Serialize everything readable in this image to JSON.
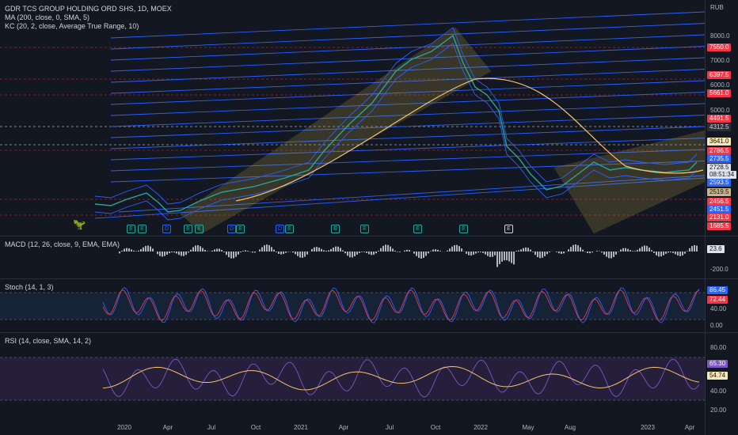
{
  "legends": {
    "symbol": "GDR TCS GROUP HOLDING ORD SHS, 1D, MOEX",
    "ma": "MA (200, close, 0, SMA, 5)",
    "kc": "KC (20, 2, close, Average True Range, 10)",
    "macd": "MACD (12, 26, close, 9, EMA, EMA)",
    "stoch": "Stoch (14, 1, 3)",
    "rsi": "RSI (14, close, SMA, 14, 2)"
  },
  "currency": "RUB",
  "price_ticks": [
    "8000.0",
    "7000.0",
    "6000.0",
    "5000.0"
  ],
  "price_tags": [
    {
      "text": "7550.0",
      "bg": "#f23645",
      "fg": "#ffffff"
    },
    {
      "text": "6397.5",
      "bg": "#f23645",
      "fg": "#ffffff"
    },
    {
      "text": "5661.0",
      "bg": "#f23645",
      "fg": "#ffffff"
    },
    {
      "text": "4491.5",
      "bg": "#f23645",
      "fg": "#ffffff"
    },
    {
      "text": "4312.5",
      "bg": "#2a2e39",
      "fg": "#d1d4dc"
    },
    {
      "text": "3641.0",
      "bg": "#f7e7b4",
      "fg": "#131722"
    },
    {
      "text": "2786.5",
      "bg": "#f23645",
      "fg": "#ffffff"
    },
    {
      "text": "2735.5",
      "bg": "#2962ff",
      "fg": "#ffffff"
    },
    {
      "text": "2728.5",
      "bg": "#e0e3eb",
      "fg": "#131722"
    },
    {
      "text": "08:51:34",
      "bg": "#e0e3eb",
      "fg": "#131722"
    },
    {
      "text": "2593.5",
      "bg": "#2962ff",
      "fg": "#ffffff"
    },
    {
      "text": "2519.5",
      "bg": "#c9b48a",
      "fg": "#131722"
    },
    {
      "text": "2456.5",
      "bg": "#f23645",
      "fg": "#ffffff"
    },
    {
      "text": "2451.5",
      "bg": "#2962ff",
      "fg": "#ffffff"
    },
    {
      "text": "2131.0",
      "bg": "#f23645",
      "fg": "#ffffff"
    },
    {
      "text": "1685.5",
      "bg": "#f23645",
      "fg": "#ffffff"
    }
  ],
  "macd_ticks": [
    "-200.0"
  ],
  "macd_tag": {
    "text": "23.6",
    "bg": "#e0e3eb",
    "fg": "#131722"
  },
  "stoch_ticks": [
    "40.00",
    "0.00"
  ],
  "stoch_tags": [
    {
      "text": "86.45",
      "bg": "#2962ff",
      "fg": "#ffffff"
    },
    {
      "text": "72.44",
      "bg": "#f23645",
      "fg": "#ffffff"
    }
  ],
  "rsi_ticks": [
    "80.00",
    "40.00",
    "20.00"
  ],
  "rsi_tags": [
    {
      "text": "65.30",
      "bg": "#7e57c2",
      "fg": "#ffffff"
    },
    {
      "text": "54.74",
      "bg": "#f7e7b4",
      "fg": "#131722"
    }
  ],
  "x_labels": [
    "2020",
    "Apr",
    "Jul",
    "Oct",
    "2021",
    "Apr",
    "Jul",
    "Oct",
    "2022",
    "May",
    "Aug",
    "2023",
    "Apr"
  ],
  "events": [
    "E",
    "E",
    "D",
    "E",
    "E",
    "D",
    "E",
    "D",
    "E",
    "D",
    "E",
    "E",
    "E",
    "E",
    "E"
  ],
  "colors": {
    "bg": "#131722",
    "grid": "#2a2e39",
    "blue": "#2962ff",
    "red": "#f23645",
    "ma": "#f7c36a",
    "rsi": "#7e57c2"
  }
}
